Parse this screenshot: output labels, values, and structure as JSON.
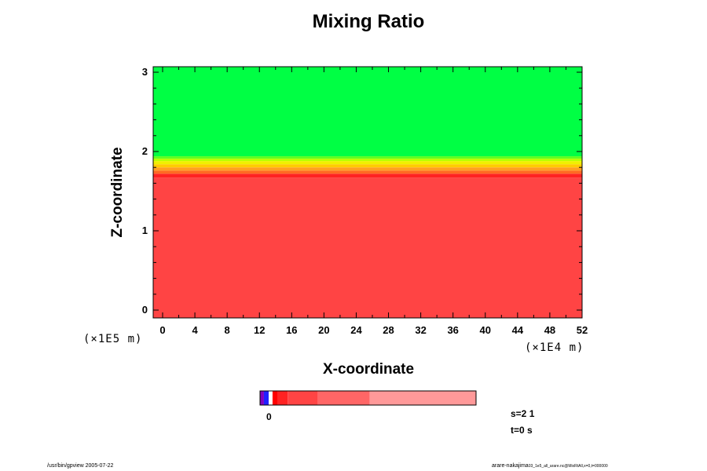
{
  "chart_data": {
    "type": "heatmap",
    "title": "Mixing Ratio",
    "xlabel": "X-coordinate",
    "ylabel": "Z-coordinate",
    "x_ticks": [
      "0",
      "4",
      "8",
      "12",
      "16",
      "20",
      "24",
      "28",
      "32",
      "36",
      "40",
      "44",
      "48",
      "52"
    ],
    "y_ticks": [
      "0",
      "1",
      "2",
      "3"
    ],
    "xlim": [
      0,
      52
    ],
    "ylim": [
      0,
      3
    ],
    "x_unit": "(×1E4 m)",
    "y_unit": "(×1E5 m)",
    "layers": [
      {
        "z_from": -0.1,
        "z_to": 1.67,
        "color": "#ff4444"
      },
      {
        "z_from": 1.67,
        "z_to": 1.72,
        "color": "#ff2222"
      },
      {
        "z_from": 1.72,
        "z_to": 1.76,
        "color": "#ff6a22"
      },
      {
        "z_from": 1.76,
        "z_to": 1.8,
        "color": "#ffa020"
      },
      {
        "z_from": 1.8,
        "z_to": 1.84,
        "color": "#ffcc00"
      },
      {
        "z_from": 1.84,
        "z_to": 1.88,
        "color": "#f0f000"
      },
      {
        "z_from": 1.88,
        "z_to": 1.91,
        "color": "#b8ff00"
      },
      {
        "z_from": 1.91,
        "z_to": 1.94,
        "color": "#60ff20"
      },
      {
        "z_from": 1.94,
        "z_to": 3.1,
        "color": "#00ff44"
      }
    ],
    "colorbar": {
      "label": "0",
      "segments": [
        {
          "fraction": 0.018,
          "color": "#8000c0"
        },
        {
          "fraction": 0.022,
          "color": "#2020ff"
        },
        {
          "fraction": 0.018,
          "color": "#ffffff"
        },
        {
          "fraction": 0.025,
          "color": "#ff0000"
        },
        {
          "fraction": 0.045,
          "color": "#ff2222"
        },
        {
          "fraction": 0.14,
          "color": "#ff4444"
        },
        {
          "fraction": 0.24,
          "color": "#ff6666"
        },
        {
          "fraction": 0.492,
          "color": "#ff9999"
        }
      ]
    }
  },
  "info": {
    "s": "s=2 1",
    "t": "t=0 s"
  },
  "footer": {
    "left": "/usr/bin/gpview 2005-07-22",
    "right": "arare-nakajima",
    "right_small": "03_1e5_all_arare.nc@MixRtAll,x=0,t=000000"
  }
}
